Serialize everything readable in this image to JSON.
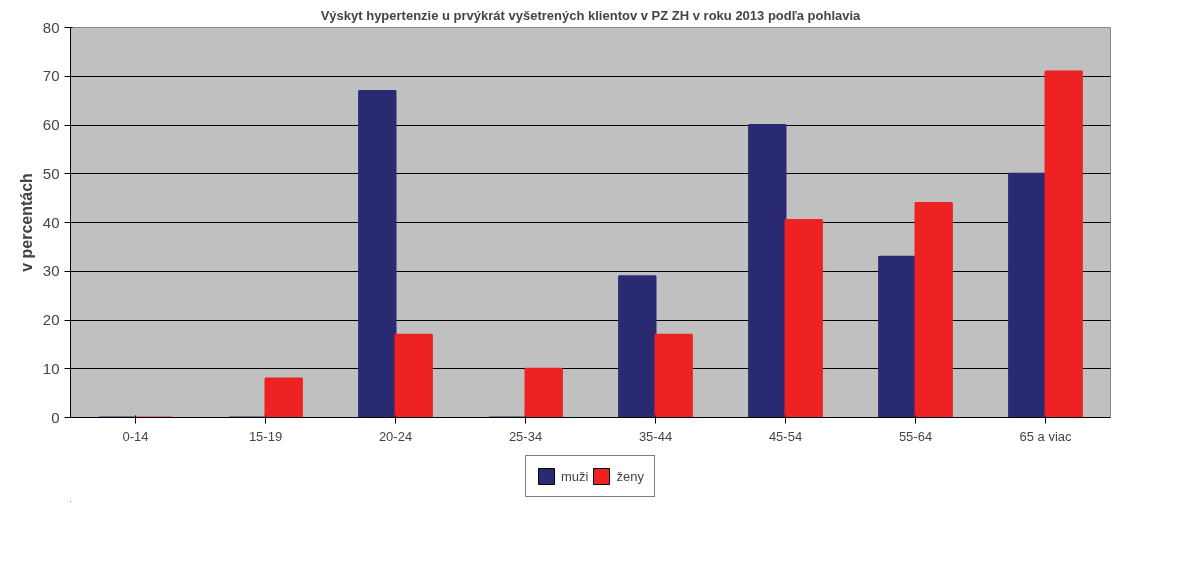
{
  "chart_data": {
    "type": "bar",
    "title": "Výskyt hypertenzie u prvýkrát vyšetrených klientov v PZ ZH v roku 2013 podľa pohlavia",
    "ylabel": "v percentách",
    "categories": [
      "0-14",
      "15-19",
      "20-24",
      "25-34",
      "35-44",
      "45-54",
      "55-64",
      "65 a viac"
    ],
    "series": [
      {
        "name": "muži",
        "color": "#2a2a72",
        "values": [
          0,
          0,
          67,
          0,
          29,
          60,
          33,
          50
        ]
      },
      {
        "name": "ženy",
        "color": "#ee2222",
        "values": [
          0,
          8,
          17,
          10,
          17,
          40.5,
          44,
          71
        ]
      }
    ],
    "ylim": [
      0,
      80
    ],
    "yticks": [
      0,
      10,
      20,
      30,
      40,
      50,
      60,
      70,
      80
    ],
    "grid": "y",
    "legend": "bottom"
  }
}
